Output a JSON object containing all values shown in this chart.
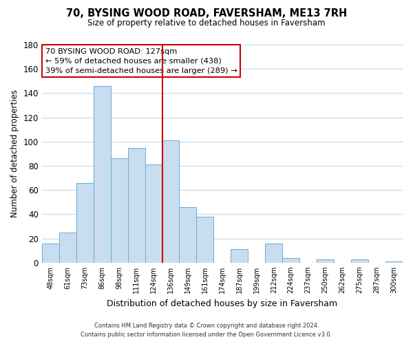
{
  "title": "70, BYSING WOOD ROAD, FAVERSHAM, ME13 7RH",
  "subtitle": "Size of property relative to detached houses in Faversham",
  "xlabel": "Distribution of detached houses by size in Faversham",
  "ylabel": "Number of detached properties",
  "bar_labels": [
    "48sqm",
    "61sqm",
    "73sqm",
    "86sqm",
    "98sqm",
    "111sqm",
    "124sqm",
    "136sqm",
    "149sqm",
    "161sqm",
    "174sqm",
    "187sqm",
    "199sqm",
    "212sqm",
    "224sqm",
    "237sqm",
    "250sqm",
    "262sqm",
    "275sqm",
    "287sqm",
    "300sqm"
  ],
  "bar_values": [
    16,
    25,
    66,
    146,
    86,
    95,
    81,
    101,
    46,
    38,
    0,
    11,
    0,
    16,
    4,
    0,
    3,
    0,
    3,
    0,
    1
  ],
  "bar_color": "#c8ddf0",
  "bar_edge_color": "#6aaad4",
  "ylim": [
    0,
    180
  ],
  "yticks": [
    0,
    20,
    40,
    60,
    80,
    100,
    120,
    140,
    160,
    180
  ],
  "property_line_x": 6.5,
  "property_line_color": "#cc0000",
  "annotation_title": "70 BYSING WOOD ROAD: 127sqm",
  "annotation_line1": "← 59% of detached houses are smaller (438)",
  "annotation_line2": "39% of semi-detached houses are larger (289) →",
  "annotation_box_color": "#ffffff",
  "annotation_box_edge": "#cc0000",
  "footer1": "Contains HM Land Registry data © Crown copyright and database right 2024.",
  "footer2": "Contains public sector information licensed under the Open Government Licence v3.0.",
  "background_color": "#ffffff",
  "grid_color": "#c8d8ec"
}
